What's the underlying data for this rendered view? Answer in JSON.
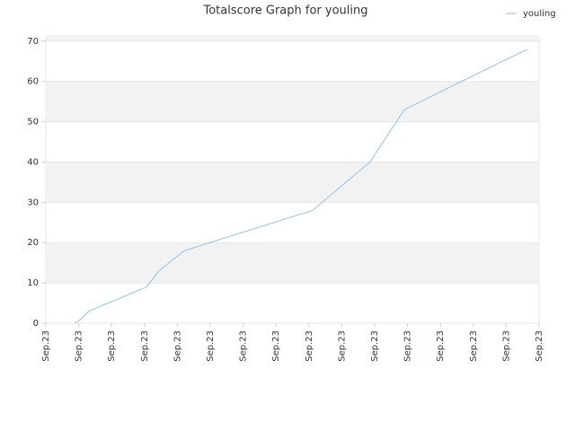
{
  "chart_data": {
    "type": "line",
    "title": "Totalscore Graph for youling",
    "x": [
      0.87,
      1.07,
      1.31,
      3.06,
      3.44,
      4.21,
      8.11,
      9.86,
      10.9,
      14.64
    ],
    "series": [
      {
        "name": "youling",
        "color": "#8ec3ef",
        "values": [
          0,
          1,
          3,
          9,
          13,
          18,
          28,
          40,
          53,
          68
        ]
      }
    ],
    "xlim": [
      0,
      15
    ],
    "xticks": [
      {
        "value": 0,
        "label": "Sep.23"
      },
      {
        "value": 1,
        "label": "Sep.23"
      },
      {
        "value": 2,
        "label": "Sep.23"
      },
      {
        "value": 3,
        "label": "Sep.23"
      },
      {
        "value": 4,
        "label": "Sep.23"
      },
      {
        "value": 5,
        "label": "Sep.23"
      },
      {
        "value": 6,
        "label": "Sep.23"
      },
      {
        "value": 7,
        "label": "Sep.23"
      },
      {
        "value": 8,
        "label": "Sep.23"
      },
      {
        "value": 9,
        "label": "Sep.23"
      },
      {
        "value": 10,
        "label": "Sep.23"
      },
      {
        "value": 11,
        "label": "Sep.23"
      },
      {
        "value": 12,
        "label": "Sep.23"
      },
      {
        "value": 13,
        "label": "Sep.23"
      },
      {
        "value": 14,
        "label": "Sep.23"
      },
      {
        "value": 15,
        "label": "Sep.23"
      }
    ],
    "ylim": [
      0,
      71.3
    ],
    "yticks": [
      0,
      10,
      20,
      30,
      40,
      50,
      60,
      70
    ],
    "grid": true,
    "legend": "top-right"
  }
}
